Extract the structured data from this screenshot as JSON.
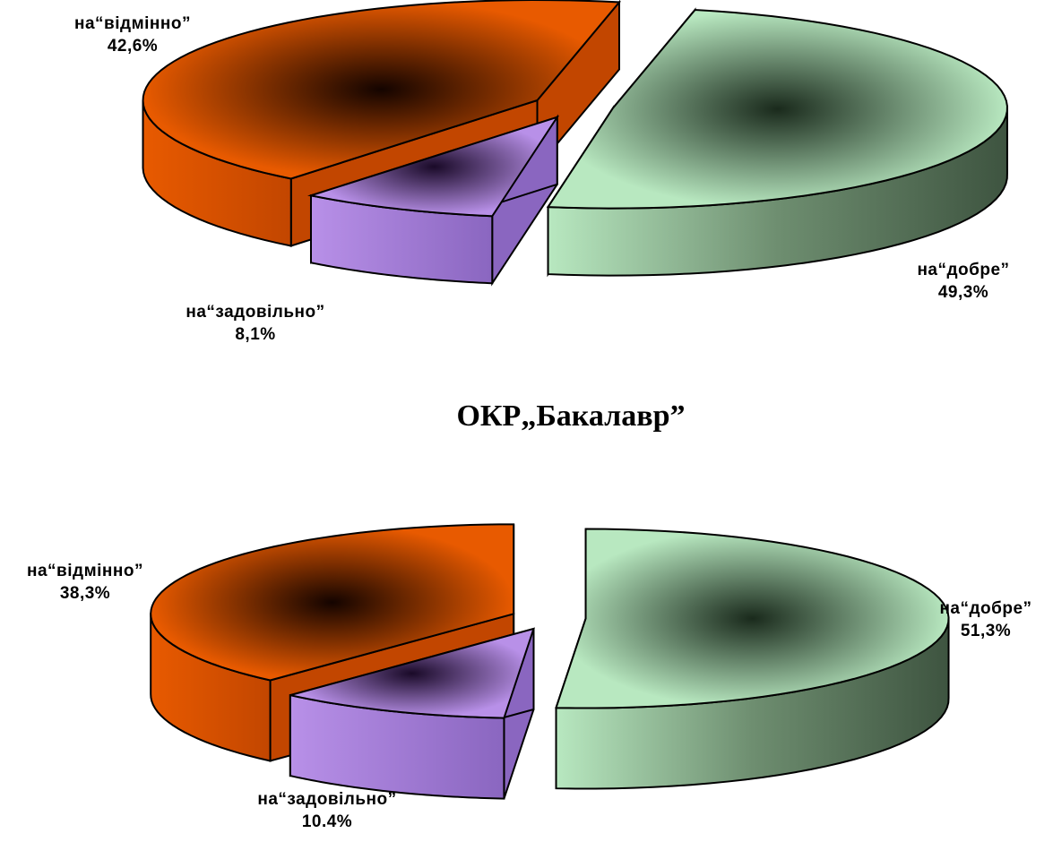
{
  "middle_title": "ОКР„Бакалавр”",
  "colors": {
    "excellent_side": "#C24600",
    "excellent_top": "#E85A00",
    "good_side": "#5E7A60",
    "good_top": "#B8E8C0",
    "satisfactory_side": "#8A66C0",
    "satisfactory_top": "#B890E8",
    "outline": "#000000"
  },
  "chart_data": [
    {
      "type": "pie",
      "title": "",
      "slices": [
        {
          "key": "excellent",
          "label": "на“відмінно”",
          "value": 42.6,
          "value_label": "42,6%"
        },
        {
          "key": "good",
          "label": "на“добре”",
          "value": 49.3,
          "value_label": "49,3%"
        },
        {
          "key": "satisfactory",
          "label": "на“задовільно”",
          "value": 8.1,
          "value_label": "8,1%"
        }
      ]
    },
    {
      "type": "pie",
      "title": "",
      "slices": [
        {
          "key": "excellent",
          "label": "на“відмінно”",
          "value": 38.3,
          "value_label": "38,3%"
        },
        {
          "key": "good",
          "label": "на“добре”",
          "value": 51.3,
          "value_label": "51,3%"
        },
        {
          "key": "satisfactory",
          "label": "на“задовільно”",
          "value": 10.4,
          "value_label": "10.4%"
        }
      ]
    }
  ]
}
